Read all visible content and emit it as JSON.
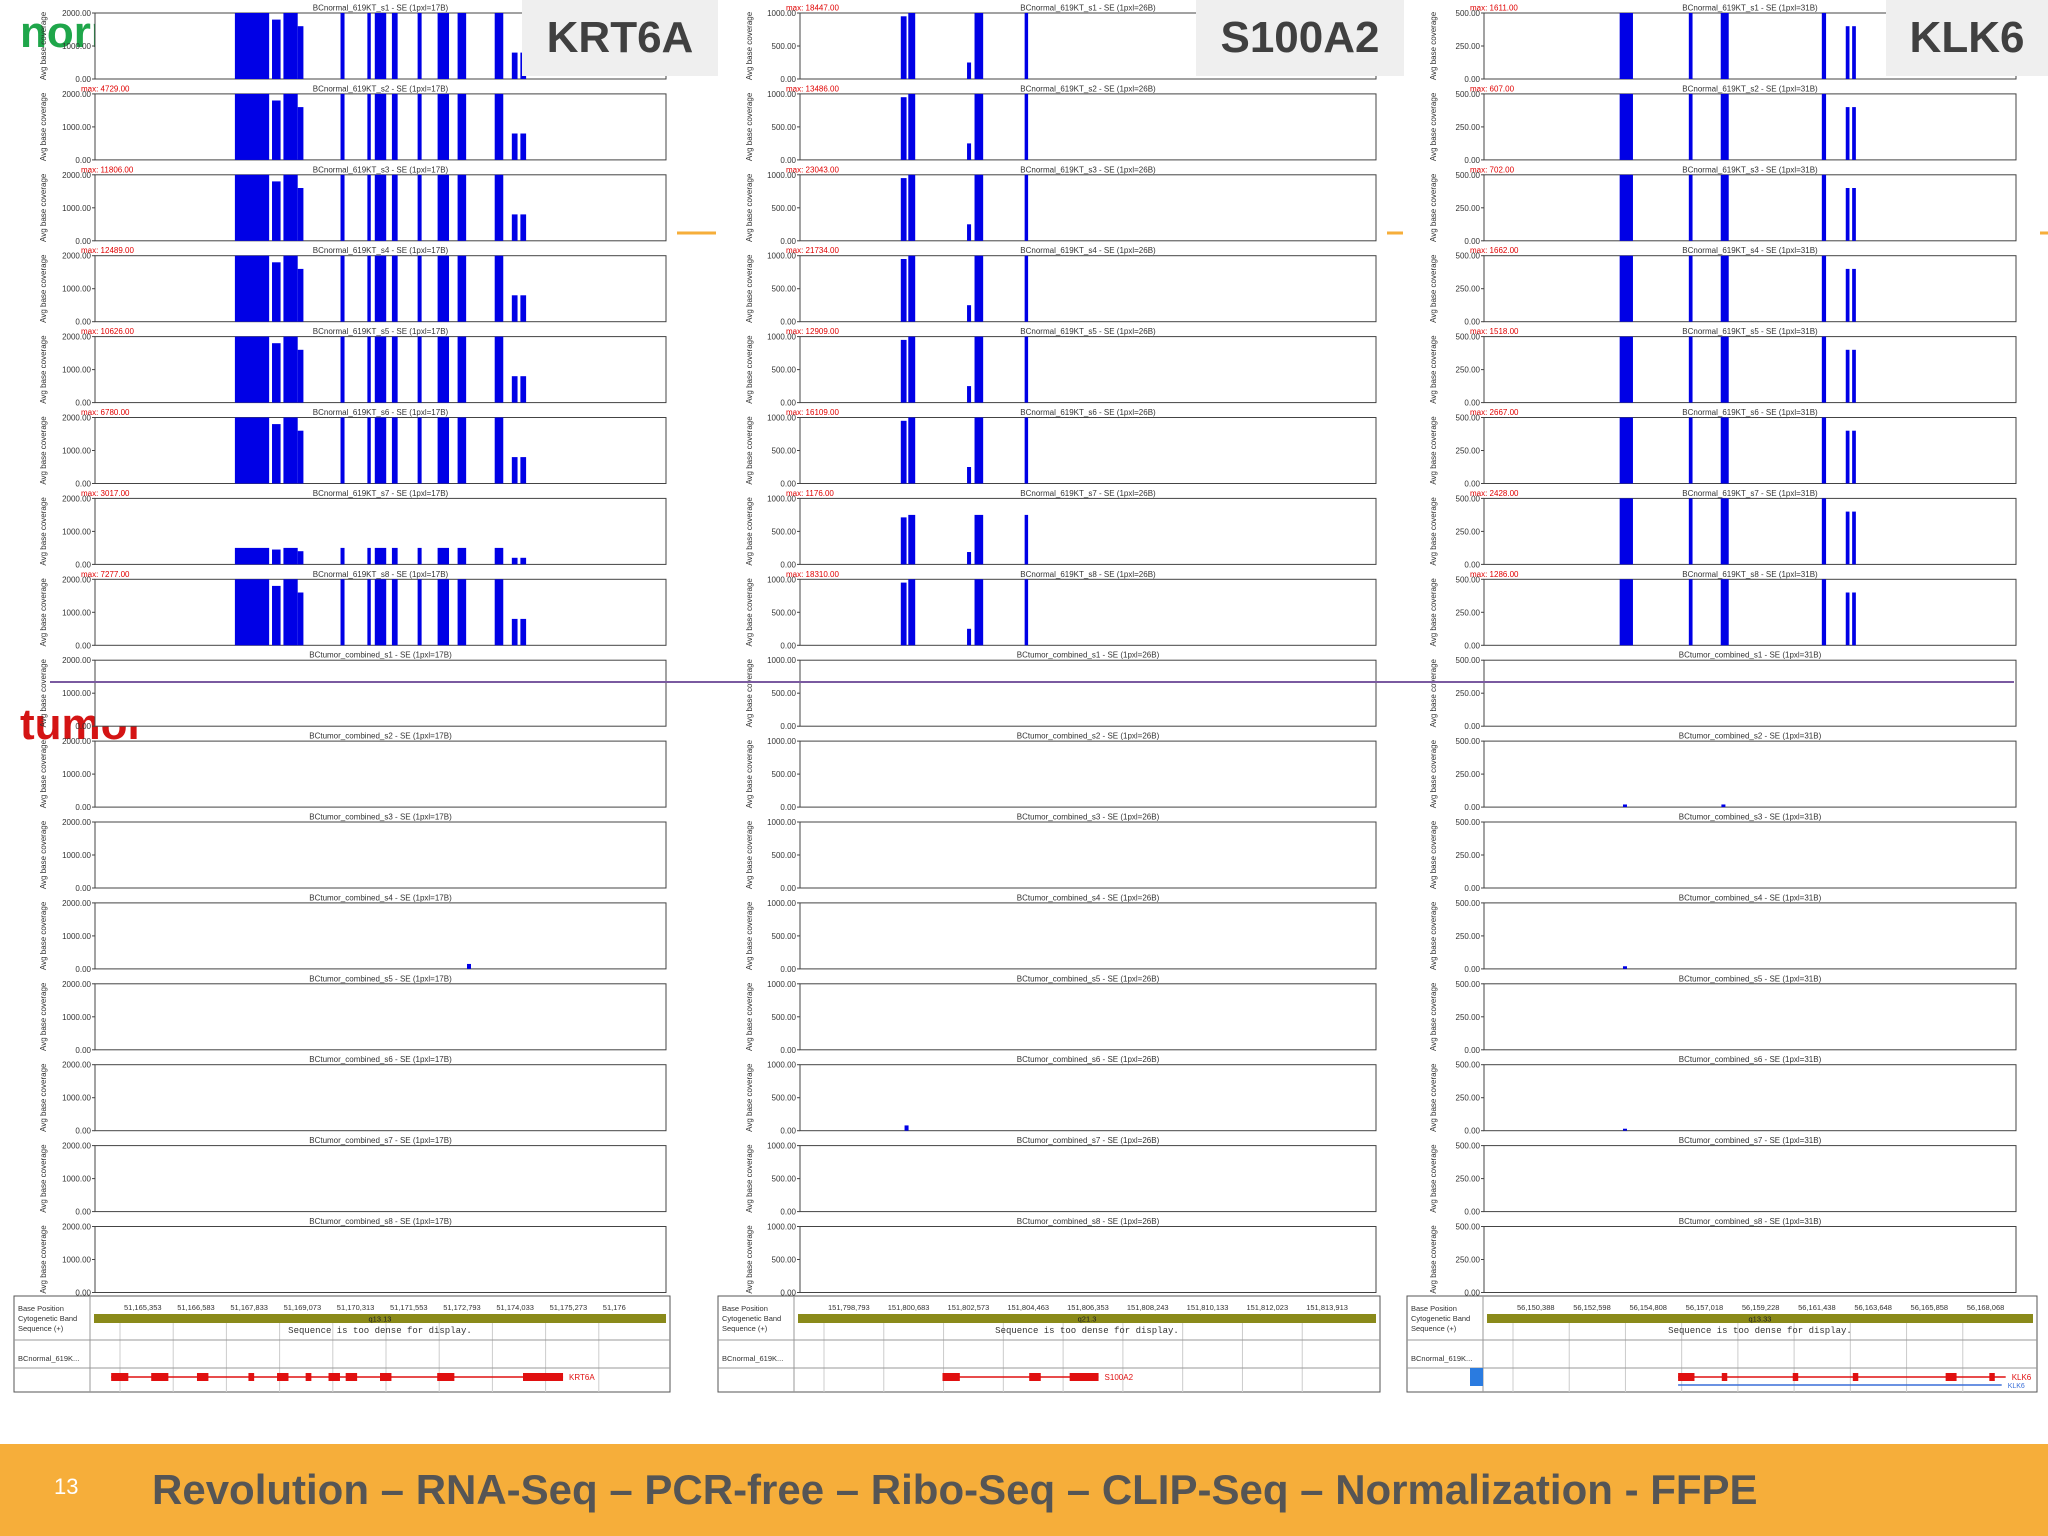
{
  "slide": {
    "label_normal": "normal",
    "label_tumor": "tumor",
    "page_number": "13",
    "tagline": "Revolution – RNA-Seq – PCR-free – Ribo-Seq – CLIP-Seq – Normalization - FFPE",
    "colors": {
      "normal": "#1fa64a",
      "tumor": "#d41414",
      "footer": "#f6ae3a",
      "coverage": "#0000e6",
      "max_text": "#e00000",
      "gene_model": "#e01010",
      "cytoband": "#8a8a1a"
    }
  },
  "common": {
    "ylabel": "Avg base coverage",
    "band_labels": [
      "Base Position",
      "Cytogenetic Band",
      "Sequence (+)"
    ],
    "sequence_msg": "Sequence is too dense for display.",
    "track_label": "BCnormal_619K..."
  },
  "chart_data": [
    {
      "type": "area",
      "gene": "KRT6A",
      "ylim": [
        0,
        2000
      ],
      "yticks": [
        "2000.00",
        "1000.00",
        "0.00"
      ],
      "xlim": [
        0,
        100
      ],
      "tracks": [
        {
          "title": "BCnormal_619KT_s1 - SE (1pxl=17B)",
          "max": "",
          "sample_type": "normal"
        },
        {
          "title": "BCnormal_619KT_s2 - SE (1pxl=17B)",
          "max": "max: 4729.00",
          "sample_type": "normal"
        },
        {
          "title": "BCnormal_619KT_s3 - SE (1pxl=17B)",
          "max": "max: 11806.00",
          "sample_type": "normal"
        },
        {
          "title": "BCnormal_619KT_s4 - SE (1pxl=17B)",
          "max": "max: 12489.00",
          "sample_type": "normal"
        },
        {
          "title": "BCnormal_619KT_s5 - SE (1pxl=17B)",
          "max": "max: 10626.00",
          "sample_type": "normal"
        },
        {
          "title": "BCnormal_619KT_s6 - SE (1pxl=17B)",
          "max": "max: 6780.00",
          "sample_type": "normal"
        },
        {
          "title": "BCnormal_619KT_s7 - SE (1pxl=17B)",
          "max": "max: 3017.00",
          "sample_type": "normal"
        },
        {
          "title": "BCnormal_619KT_s8 - SE (1pxl=17B)",
          "max": "max: 7277.00",
          "sample_type": "normal"
        },
        {
          "title": "BCtumor_combined_s1 - SE (1pxl=17B)",
          "max": "",
          "sample_type": "tumor"
        },
        {
          "title": "BCtumor_combined_s2 - SE (1pxl=17B)",
          "max": "",
          "sample_type": "tumor"
        },
        {
          "title": "BCtumor_combined_s3 - SE (1pxl=17B)",
          "max": "",
          "sample_type": "tumor"
        },
        {
          "title": "BCtumor_combined_s4 - SE (1pxl=17B)",
          "max": "",
          "sample_type": "tumor"
        },
        {
          "title": "BCtumor_combined_s5 - SE (1pxl=17B)",
          "max": "",
          "sample_type": "tumor"
        },
        {
          "title": "BCtumor_combined_s6 - SE (1pxl=17B)",
          "max": "",
          "sample_type": "tumor"
        },
        {
          "title": "BCtumor_combined_s7 - SE (1pxl=17B)",
          "max": "",
          "sample_type": "tumor"
        },
        {
          "title": "BCtumor_combined_s8 - SE (1pxl=17B)",
          "max": "",
          "sample_type": "tumor"
        }
      ],
      "peaks": [
        [
          24.5,
          30.5,
          2000
        ],
        [
          31,
          32.5,
          1800
        ],
        [
          33,
          35.5,
          2000
        ],
        [
          35.5,
          36.5,
          1600
        ],
        [
          43,
          43.7,
          2000
        ],
        [
          47.7,
          48.3,
          2000
        ],
        [
          49,
          51,
          2000
        ],
        [
          52,
          53,
          2000
        ],
        [
          56.5,
          57.2,
          2000
        ],
        [
          60,
          62,
          2000
        ],
        [
          63.5,
          65,
          2000
        ],
        [
          70,
          71.5,
          2000
        ],
        [
          73,
          74,
          800
        ],
        [
          74.5,
          75.5,
          800
        ]
      ],
      "tumor_peaks": [
        {
          "track": 11,
          "x": 65.5,
          "y": 150
        }
      ],
      "axis": {
        "base_positions": [
          "51,165,353",
          "51,166,583",
          "51,167,833",
          "51,169,073",
          "51,170,313",
          "51,171,553",
          "51,172,793",
          "51,174,033",
          "51,175,273",
          "51,176"
        ],
        "cytoband": "q13.13",
        "gene_label": "KRT6A",
        "exons": [
          [
            3,
            6
          ],
          [
            10,
            13
          ],
          [
            18,
            20
          ],
          [
            27,
            28
          ],
          [
            32,
            34
          ],
          [
            37,
            38
          ],
          [
            41,
            43
          ],
          [
            44,
            46
          ],
          [
            50,
            52
          ],
          [
            60,
            63
          ],
          [
            75,
            82
          ]
        ],
        "gene_span": [
          3,
          82
        ]
      }
    },
    {
      "type": "area",
      "gene": "S100A2",
      "ylim": [
        0,
        1000
      ],
      "yticks": [
        "1000.00",
        "500.00",
        "0.00"
      ],
      "xlim": [
        0,
        100
      ],
      "tracks": [
        {
          "title": "BCnormal_619KT_s1 - SE (1pxl=26B)",
          "max": "max: 18447.00",
          "sample_type": "normal"
        },
        {
          "title": "BCnormal_619KT_s2 - SE (1pxl=26B)",
          "max": "max: 13486.00",
          "sample_type": "normal"
        },
        {
          "title": "BCnormal_619KT_s3 - SE (1pxl=26B)",
          "max": "max: 23043.00",
          "sample_type": "normal"
        },
        {
          "title": "BCnormal_619KT_s4 - SE (1pxl=26B)",
          "max": "max: 21734.00",
          "sample_type": "normal"
        },
        {
          "title": "BCnormal_619KT_s5 - SE (1pxl=26B)",
          "max": "max: 12909.00",
          "sample_type": "normal"
        },
        {
          "title": "BCnormal_619KT_s6 - SE (1pxl=26B)",
          "max": "max: 16109.00",
          "sample_type": "normal"
        },
        {
          "title": "BCnormal_619KT_s7 - SE (1pxl=26B)",
          "max": "max: 1176.00",
          "sample_type": "normal"
        },
        {
          "title": "BCnormal_619KT_s8 - SE (1pxl=26B)",
          "max": "max: 18310.00",
          "sample_type": "normal"
        },
        {
          "title": "BCtumor_combined_s1 - SE (1pxl=26B)",
          "max": "",
          "sample_type": "tumor"
        },
        {
          "title": "BCtumor_combined_s2 - SE (1pxl=26B)",
          "max": "",
          "sample_type": "tumor"
        },
        {
          "title": "BCtumor_combined_s3 - SE (1pxl=26B)",
          "max": "",
          "sample_type": "tumor"
        },
        {
          "title": "BCtumor_combined_s4 - SE (1pxl=26B)",
          "max": "",
          "sample_type": "tumor"
        },
        {
          "title": "BCtumor_combined_s5 - SE (1pxl=26B)",
          "max": "",
          "sample_type": "tumor"
        },
        {
          "title": "BCtumor_combined_s6 - SE (1pxl=26B)",
          "max": "",
          "sample_type": "tumor"
        },
        {
          "title": "BCtumor_combined_s7 - SE (1pxl=26B)",
          "max": "",
          "sample_type": "tumor"
        },
        {
          "title": "BCtumor_combined_s8 - SE (1pxl=26B)",
          "max": "",
          "sample_type": "tumor"
        }
      ],
      "peaks": [
        [
          17.5,
          18.5,
          950
        ],
        [
          18.8,
          20,
          1000
        ],
        [
          29,
          29.7,
          250
        ],
        [
          30.3,
          31.8,
          1000
        ],
        [
          39,
          39.6,
          1000
        ]
      ],
      "tumor_peaks": [
        {
          "track": 13,
          "x": 18.5,
          "y": 80
        }
      ],
      "axis": {
        "base_positions": [
          "151,798,793",
          "151,800,683",
          "151,802,573",
          "151,804,463",
          "151,806,353",
          "151,808,243",
          "151,810,133",
          "151,812,023",
          "151,813,913"
        ],
        "cytoband": "q21.3",
        "gene_label": "S100A2",
        "exons": [
          [
            25,
            28
          ],
          [
            40,
            42
          ],
          [
            47,
            52
          ]
        ],
        "gene_span": [
          25,
          52
        ]
      }
    },
    {
      "type": "area",
      "gene": "KLK6",
      "ylim": [
        0,
        500
      ],
      "yticks": [
        "500.00",
        "250.00",
        "0.00"
      ],
      "xlim": [
        0,
        100
      ],
      "tracks": [
        {
          "title": "BCnormal_619KT_s1 - SE (1pxl=31B)",
          "max": "max: 1611.00",
          "sample_type": "normal"
        },
        {
          "title": "BCnormal_619KT_s2 - SE (1pxl=31B)",
          "max": "max: 607.00",
          "sample_type": "normal"
        },
        {
          "title": "BCnormal_619KT_s3 - SE (1pxl=31B)",
          "max": "max: 702.00",
          "sample_type": "normal"
        },
        {
          "title": "BCnormal_619KT_s4 - SE (1pxl=31B)",
          "max": "max: 1662.00",
          "sample_type": "normal"
        },
        {
          "title": "BCnormal_619KT_s5 - SE (1pxl=31B)",
          "max": "max: 1518.00",
          "sample_type": "normal"
        },
        {
          "title": "BCnormal_619KT_s6 - SE (1pxl=31B)",
          "max": "max: 2667.00",
          "sample_type": "normal"
        },
        {
          "title": "BCnormal_619KT_s7 - SE (1pxl=31B)",
          "max": "max: 2428.00",
          "sample_type": "normal"
        },
        {
          "title": "BCnormal_619KT_s8 - SE (1pxl=31B)",
          "max": "max: 1286.00",
          "sample_type": "normal"
        },
        {
          "title": "BCtumor_combined_s1 - SE (1pxl=31B)",
          "max": "",
          "sample_type": "tumor"
        },
        {
          "title": "BCtumor_combined_s2 - SE (1pxl=31B)",
          "max": "",
          "sample_type": "tumor"
        },
        {
          "title": "BCtumor_combined_s3 - SE (1pxl=31B)",
          "max": "",
          "sample_type": "tumor"
        },
        {
          "title": "BCtumor_combined_s4 - SE (1pxl=31B)",
          "max": "",
          "sample_type": "tumor"
        },
        {
          "title": "BCtumor_combined_s5 - SE (1pxl=31B)",
          "max": "",
          "sample_type": "tumor"
        },
        {
          "title": "BCtumor_combined_s6 - SE (1pxl=31B)",
          "max": "",
          "sample_type": "tumor"
        },
        {
          "title": "BCtumor_combined_s7 - SE (1pxl=31B)",
          "max": "",
          "sample_type": "tumor"
        },
        {
          "title": "BCtumor_combined_s8 - SE (1pxl=31B)",
          "max": "",
          "sample_type": "tumor"
        }
      ],
      "peaks": [
        [
          25.5,
          28,
          500
        ],
        [
          38.5,
          39.2,
          500
        ],
        [
          44.5,
          46,
          500
        ],
        [
          63.5,
          64.3,
          500
        ],
        [
          68,
          68.7,
          400
        ],
        [
          69.2,
          69.9,
          400
        ]
      ],
      "tumor_peaks": [
        {
          "track": 9,
          "x": 26.5,
          "y": 20
        },
        {
          "track": 9,
          "x": 45,
          "y": 20
        },
        {
          "track": 11,
          "x": 26.5,
          "y": 20
        },
        {
          "track": 13,
          "x": 26.5,
          "y": 15
        }
      ],
      "axis": {
        "base_positions": [
          "56,150,388",
          "56,152,598",
          "56,154,808",
          "56,157,018",
          "56,159,228",
          "56,161,438",
          "56,163,648",
          "56,165,858",
          "56,168,068"
        ],
        "cytoband": "q13.33",
        "gene_label": "KLK6",
        "transcript2_label": "KLK6",
        "exons": [
          [
            35,
            38
          ],
          [
            43,
            44
          ],
          [
            56,
            57
          ],
          [
            67,
            68
          ],
          [
            84,
            86
          ],
          [
            92,
            93
          ]
        ],
        "gene_span": [
          35,
          95
        ]
      }
    }
  ]
}
